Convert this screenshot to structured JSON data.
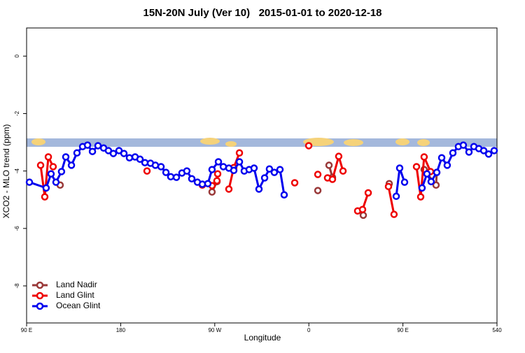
{
  "chart_data": {
    "type": "line",
    "title": "15N-20N July (Ver 10)   2015-01-01 to 2020-12-18",
    "x_label": "Longitude",
    "y_label": "XCO2 - MLO trend (ppm)",
    "xlim": [
      90,
      540
    ],
    "xticks": [
      {
        "value": 90,
        "label": "90 E"
      },
      180,
      {
        "value": 270,
        "label": "90 W"
      },
      {
        "value": 360,
        "label": "0"
      },
      {
        "value": 450,
        "label": "90 E"
      },
      540
    ],
    "ylim": [
      -9.29,
      0.98
    ],
    "yticks": [
      0,
      -2,
      -4,
      -6,
      -8
    ],
    "legend": "bottomleft",
    "series": [
      {
        "name": "Land Nadir",
        "color": "#993838",
        "x": [
          122.1,
          200,
          267.4,
          272.1,
          320,
          368.6,
          372,
          379.3,
          382.6,
          400,
          412.1,
          430,
          436.9,
          455,
          470.3,
          481.7,
          482.4
        ],
        "values": [
          -4.49,
          null,
          -4.73,
          -4.37,
          null,
          -4.68,
          null,
          -3.8,
          -4.22,
          null,
          -5.54,
          null,
          -4.44,
          null,
          -3.95,
          -4.49,
          -4.05
        ]
      },
      {
        "name": "Land Glint",
        "color": "#ee0000",
        "x": [
          103.4,
          107.4,
          110.8,
          115.4,
          150,
          205.2,
          240,
          258.1,
          267.4,
          272.1,
          272.8,
          275,
          283.5,
          288.2,
          293.6,
          320,
          346.5,
          350,
          359.9,
          362,
          368.6,
          372,
          377.9,
          382.6,
          388.6,
          392.7,
          400,
          406.7,
          411.4,
          416.8,
          430,
          436.2,
          441.5,
          455,
          463.0,
          467.0,
          470.3,
          476.4
        ],
        "values": [
          -3.8,
          -4.9,
          -3.51,
          -3.85,
          null,
          -4.0,
          null,
          -4.49,
          -4.51,
          -4.34,
          -4.1,
          null,
          -4.63,
          -3.88,
          -3.37,
          null,
          -4.41,
          null,
          -3.12,
          null,
          -4.12,
          null,
          -4.24,
          -4.29,
          -3.49,
          -4.0,
          null,
          -5.39,
          -5.34,
          -4.76,
          null,
          -4.54,
          -5.51,
          null,
          -3.85,
          -4.9,
          -3.51,
          -4.02
        ]
      },
      {
        "name": "Ocean Glint",
        "color": "#0000ee",
        "x": [
          92.7,
          108.7,
          113.4,
          118.1,
          123.4,
          127.5,
          132.9,
          138.2,
          143.6,
          148.3,
          153.0,
          158.3,
          163.7,
          168.3,
          173.0,
          178.4,
          183.1,
          188.4,
          193.8,
          198.5,
          203.2,
          208.5,
          213.2,
          218.6,
          223.3,
          227.9,
          233.3,
          238.6,
          243.3,
          248.0,
          253.4,
          258.1,
          263.4,
          267.4,
          273.5,
          278.2,
          283.5,
          288.2,
          293.6,
          298.2,
          302.9,
          307.6,
          312.3,
          317.7,
          322.3,
          327.0,
          332.4,
          336.4,
          400,
          443.6,
          446.9,
          451.6,
          460,
          468.3,
          473.0,
          477.0,
          482.4,
          487.1,
          492.4,
          497.8,
          503.1,
          507.8,
          513.2,
          517.9,
          522.6,
          527.3,
          532.0,
          537.3
        ],
        "values": [
          -4.39,
          -4.59,
          -4.1,
          -4.39,
          -4.02,
          -3.51,
          -3.8,
          -3.37,
          -3.15,
          -3.1,
          -3.32,
          -3.12,
          -3.2,
          -3.29,
          -3.39,
          -3.29,
          -3.39,
          -3.54,
          -3.51,
          -3.59,
          -3.71,
          -3.73,
          -3.8,
          -3.85,
          -4.05,
          -4.2,
          -4.22,
          -4.07,
          -4.0,
          -4.27,
          -4.39,
          -4.46,
          -4.44,
          -3.95,
          -3.68,
          -3.85,
          -3.9,
          -3.98,
          -3.68,
          -4.0,
          -3.95,
          -3.9,
          -4.63,
          -4.24,
          -3.93,
          -4.05,
          -3.95,
          -4.83,
          null,
          -4.88,
          -3.9,
          -4.39,
          null,
          -4.59,
          -4.1,
          -4.37,
          -4.05,
          -3.54,
          -3.8,
          -3.37,
          -3.15,
          -3.1,
          -3.34,
          -3.15,
          -3.22,
          -3.29,
          -3.41,
          -3.29
        ]
      }
    ]
  }
}
